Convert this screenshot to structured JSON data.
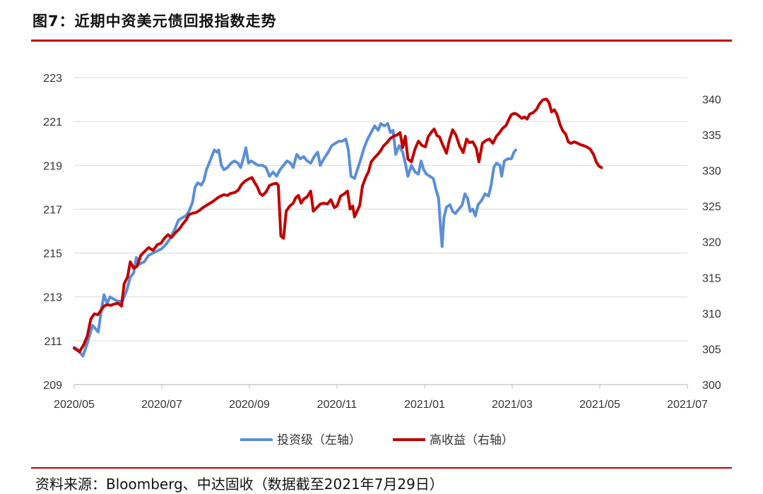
{
  "title": "图7：近期中资美元债回报指数走势",
  "source": "资料来源：Bloomberg、中达固收（数据截至2021年7月29日）",
  "chart_data": {
    "type": "line",
    "xlabels": [
      "2020/05",
      "2020/07",
      "2020/09",
      "2020/11",
      "2021/01",
      "2021/03",
      "2021/05",
      "2021/07"
    ],
    "left_axis": {
      "ticks": [
        209,
        211,
        213,
        215,
        217,
        219,
        221,
        223
      ],
      "range": [
        209,
        223
      ]
    },
    "right_axis": {
      "ticks": [
        300,
        305,
        310,
        315,
        320,
        325,
        330,
        335,
        340
      ],
      "range": [
        300,
        343
      ]
    },
    "grid": true,
    "legend": "bottom",
    "series": [
      {
        "name": "投资级（左轴）",
        "axis": "left",
        "color": "#5b8fd6",
        "points": [
          [
            0.0,
            210.7
          ],
          [
            0.08,
            210.6
          ],
          [
            0.2,
            210.3
          ],
          [
            0.3,
            210.9
          ],
          [
            0.42,
            211.7
          ],
          [
            0.55,
            211.4
          ],
          [
            0.62,
            212.4
          ],
          [
            0.68,
            213.1
          ],
          [
            0.75,
            212.7
          ],
          [
            0.82,
            213.0
          ],
          [
            0.9,
            212.9
          ],
          [
            1.0,
            212.8
          ],
          [
            1.1,
            212.8
          ],
          [
            1.2,
            213.3
          ],
          [
            1.28,
            213.9
          ],
          [
            1.36,
            214.1
          ],
          [
            1.42,
            214.8
          ],
          [
            1.5,
            214.5
          ],
          [
            1.6,
            214.6
          ],
          [
            1.7,
            214.9
          ],
          [
            1.8,
            215.0
          ],
          [
            1.9,
            215.1
          ],
          [
            2.0,
            215.2
          ],
          [
            2.1,
            215.4
          ],
          [
            2.2,
            215.7
          ],
          [
            2.3,
            216.1
          ],
          [
            2.38,
            216.5
          ],
          [
            2.46,
            216.6
          ],
          [
            2.55,
            216.7
          ],
          [
            2.62,
            216.9
          ],
          [
            2.7,
            217.3
          ],
          [
            2.76,
            218.0
          ],
          [
            2.82,
            218.2
          ],
          [
            2.9,
            218.1
          ],
          [
            2.96,
            218.3
          ],
          [
            3.02,
            218.8
          ],
          [
            3.08,
            219.1
          ],
          [
            3.14,
            219.4
          ],
          [
            3.2,
            219.7
          ],
          [
            3.26,
            219.6
          ],
          [
            3.3,
            219.7
          ],
          [
            3.36,
            219.0
          ],
          [
            3.42,
            218.8
          ],
          [
            3.5,
            218.9
          ],
          [
            3.58,
            219.1
          ],
          [
            3.66,
            219.2
          ],
          [
            3.74,
            219.1
          ],
          [
            3.8,
            218.9
          ],
          [
            3.86,
            219.3
          ],
          [
            3.92,
            219.8
          ],
          [
            3.98,
            219.1
          ],
          [
            4.04,
            219.2
          ],
          [
            4.12,
            219.1
          ],
          [
            4.2,
            219.0
          ],
          [
            4.3,
            219.0
          ],
          [
            4.38,
            218.9
          ],
          [
            4.46,
            218.5
          ],
          [
            4.54,
            218.7
          ],
          [
            4.62,
            218.5
          ],
          [
            4.7,
            218.8
          ],
          [
            4.78,
            219.0
          ],
          [
            4.86,
            219.2
          ],
          [
            4.94,
            219.1
          ],
          [
            5.0,
            218.9
          ],
          [
            5.08,
            219.5
          ],
          [
            5.16,
            219.3
          ],
          [
            5.24,
            219.4
          ],
          [
            5.32,
            219.2
          ],
          [
            5.4,
            219.1
          ],
          [
            5.48,
            219.4
          ],
          [
            5.56,
            219.6
          ],
          [
            5.62,
            219.0
          ],
          [
            5.7,
            219.3
          ],
          [
            5.8,
            219.6
          ],
          [
            5.88,
            219.9
          ],
          [
            5.96,
            220.0
          ],
          [
            6.04,
            220.1
          ],
          [
            6.12,
            220.1
          ],
          [
            6.2,
            220.2
          ],
          [
            6.26,
            219.7
          ],
          [
            6.32,
            218.5
          ],
          [
            6.4,
            218.4
          ],
          [
            6.48,
            218.9
          ],
          [
            6.56,
            219.4
          ],
          [
            6.62,
            219.8
          ],
          [
            6.7,
            220.2
          ],
          [
            6.78,
            220.5
          ],
          [
            6.86,
            220.8
          ],
          [
            6.94,
            220.6
          ],
          [
            7.0,
            220.9
          ],
          [
            7.08,
            220.8
          ],
          [
            7.16,
            220.9
          ],
          [
            7.22,
            220.5
          ],
          [
            7.28,
            220.6
          ],
          [
            7.34,
            219.5
          ],
          [
            7.42,
            219.9
          ],
          [
            7.5,
            219.6
          ],
          [
            7.56,
            219.1
          ],
          [
            7.62,
            218.5
          ],
          [
            7.7,
            219.0
          ],
          [
            7.78,
            218.7
          ],
          [
            7.86,
            218.6
          ],
          [
            7.92,
            219.2
          ],
          [
            7.98,
            218.8
          ],
          [
            8.04,
            218.6
          ],
          [
            8.12,
            218.5
          ],
          [
            8.2,
            218.4
          ],
          [
            8.26,
            217.9
          ],
          [
            8.32,
            217.5
          ],
          [
            8.36,
            216.3
          ],
          [
            8.4,
            215.3
          ],
          [
            8.44,
            216.6
          ],
          [
            8.5,
            217.1
          ],
          [
            8.58,
            217.2
          ],
          [
            8.64,
            216.9
          ],
          [
            8.7,
            216.8
          ],
          [
            8.78,
            217.0
          ],
          [
            8.86,
            217.2
          ],
          [
            8.92,
            217.7
          ],
          [
            8.98,
            217.5
          ],
          [
            9.04,
            216.9
          ],
          [
            9.1,
            217.0
          ],
          [
            9.16,
            216.7
          ],
          [
            9.22,
            217.2
          ],
          [
            9.3,
            217.4
          ],
          [
            9.38,
            217.7
          ],
          [
            9.46,
            217.6
          ],
          [
            9.52,
            218.1
          ],
          [
            9.58,
            218.9
          ],
          [
            9.64,
            219.1
          ],
          [
            9.72,
            219.0
          ],
          [
            9.76,
            218.5
          ],
          [
            9.82,
            219.2
          ],
          [
            9.9,
            219.3
          ],
          [
            9.98,
            219.3
          ],
          [
            10.04,
            219.6
          ],
          [
            10.08,
            219.7
          ]
        ]
      },
      {
        "name": "高收益（右轴）",
        "axis": "right",
        "color": "#c00000",
        "points": [
          [
            0.0,
            305.1
          ],
          [
            0.12,
            304.6
          ],
          [
            0.22,
            305.6
          ],
          [
            0.3,
            306.8
          ],
          [
            0.38,
            309.2
          ],
          [
            0.46,
            309.9
          ],
          [
            0.54,
            309.8
          ],
          [
            0.6,
            310.3
          ],
          [
            0.68,
            311.0
          ],
          [
            0.76,
            311.2
          ],
          [
            0.84,
            311.1
          ],
          [
            0.92,
            311.3
          ],
          [
            1.0,
            311.4
          ],
          [
            1.08,
            311.0
          ],
          [
            1.14,
            314.1
          ],
          [
            1.22,
            315.1
          ],
          [
            1.28,
            317.2
          ],
          [
            1.36,
            316.3
          ],
          [
            1.44,
            316.6
          ],
          [
            1.52,
            318.1
          ],
          [
            1.6,
            318.6
          ],
          [
            1.7,
            319.2
          ],
          [
            1.8,
            318.8
          ],
          [
            1.9,
            319.6
          ],
          [
            1.98,
            319.8
          ],
          [
            2.06,
            320.5
          ],
          [
            2.14,
            321.0
          ],
          [
            2.22,
            320.6
          ],
          [
            2.3,
            321.2
          ],
          [
            2.4,
            321.8
          ],
          [
            2.48,
            322.5
          ],
          [
            2.56,
            323.1
          ],
          [
            2.62,
            323.8
          ],
          [
            2.7,
            324.0
          ],
          [
            2.78,
            324.1
          ],
          [
            2.86,
            324.4
          ],
          [
            2.94,
            324.8
          ],
          [
            3.02,
            325.1
          ],
          [
            3.1,
            325.4
          ],
          [
            3.18,
            325.7
          ],
          [
            3.26,
            326.1
          ],
          [
            3.34,
            326.4
          ],
          [
            3.42,
            326.6
          ],
          [
            3.5,
            326.5
          ],
          [
            3.58,
            326.8
          ],
          [
            3.66,
            326.9
          ],
          [
            3.74,
            327.2
          ],
          [
            3.82,
            328.0
          ],
          [
            3.9,
            328.5
          ],
          [
            3.98,
            328.8
          ],
          [
            4.06,
            329.0
          ],
          [
            4.12,
            328.3
          ],
          [
            4.18,
            327.7
          ],
          [
            4.24,
            326.8
          ],
          [
            4.3,
            326.5
          ],
          [
            4.38,
            327.0
          ],
          [
            4.46,
            327.9
          ],
          [
            4.54,
            328.1
          ],
          [
            4.62,
            328.2
          ],
          [
            4.66,
            327.9
          ],
          [
            4.72,
            320.8
          ],
          [
            4.78,
            320.5
          ],
          [
            4.84,
            324.3
          ],
          [
            4.92,
            325.0
          ],
          [
            5.0,
            325.4
          ],
          [
            5.06,
            326.2
          ],
          [
            5.12,
            326.5
          ],
          [
            5.18,
            325.4
          ],
          [
            5.24,
            326.0
          ],
          [
            5.32,
            326.3
          ],
          [
            5.4,
            327.1
          ],
          [
            5.46,
            324.3
          ],
          [
            5.54,
            324.8
          ],
          [
            5.62,
            325.3
          ],
          [
            5.7,
            325.4
          ],
          [
            5.78,
            325.3
          ],
          [
            5.86,
            325.9
          ],
          [
            5.94,
            324.8
          ],
          [
            6.0,
            325.0
          ],
          [
            6.08,
            326.4
          ],
          [
            6.16,
            326.7
          ],
          [
            6.24,
            327.1
          ],
          [
            6.3,
            324.6
          ],
          [
            6.36,
            325.0
          ],
          [
            6.4,
            323.5
          ],
          [
            6.46,
            324.3
          ],
          [
            6.52,
            325.1
          ],
          [
            6.58,
            327.8
          ],
          [
            6.66,
            329.1
          ],
          [
            6.72,
            329.8
          ],
          [
            6.78,
            331.2
          ],
          [
            6.86,
            331.8
          ],
          [
            6.94,
            332.3
          ],
          [
            7.0,
            332.8
          ],
          [
            7.06,
            333.4
          ],
          [
            7.14,
            333.9
          ],
          [
            7.22,
            334.5
          ],
          [
            7.3,
            334.8
          ],
          [
            7.38,
            335.0
          ],
          [
            7.44,
            335.3
          ],
          [
            7.5,
            333.2
          ],
          [
            7.56,
            334.8
          ],
          [
            7.62,
            331.6
          ],
          [
            7.7,
            331.2
          ],
          [
            7.78,
            333.0
          ],
          [
            7.86,
            334.1
          ],
          [
            7.94,
            333.5
          ],
          [
            8.02,
            333.3
          ],
          [
            8.08,
            334.7
          ],
          [
            8.16,
            335.4
          ],
          [
            8.22,
            335.8
          ],
          [
            8.28,
            334.9
          ],
          [
            8.34,
            334.7
          ],
          [
            8.42,
            333.5
          ],
          [
            8.5,
            332.4
          ],
          [
            8.56,
            334.1
          ],
          [
            8.64,
            335.7
          ],
          [
            8.72,
            334.9
          ],
          [
            8.8,
            333.4
          ],
          [
            8.88,
            332.5
          ],
          [
            8.96,
            334.4
          ],
          [
            9.02,
            333.9
          ],
          [
            9.1,
            334.0
          ],
          [
            9.18,
            333.1
          ],
          [
            9.24,
            331.2
          ],
          [
            9.32,
            333.8
          ],
          [
            9.4,
            334.2
          ],
          [
            9.48,
            334.4
          ],
          [
            9.56,
            333.8
          ],
          [
            9.64,
            334.8
          ],
          [
            9.7,
            335.2
          ],
          [
            9.78,
            335.9
          ],
          [
            9.86,
            336.3
          ],
          [
            9.92,
            337.1
          ],
          [
            9.98,
            337.8
          ],
          [
            10.04,
            338.0
          ],
          [
            10.1,
            337.9
          ],
          [
            10.16,
            337.6
          ],
          [
            10.22,
            337.3
          ],
          [
            10.28,
            337.5
          ],
          [
            10.34,
            337.2
          ],
          [
            10.4,
            337.9
          ],
          [
            10.48,
            338.1
          ],
          [
            10.56,
            338.6
          ],
          [
            10.62,
            339.3
          ],
          [
            10.7,
            339.9
          ],
          [
            10.78,
            340.0
          ],
          [
            10.84,
            339.5
          ],
          [
            10.9,
            338.2
          ],
          [
            10.96,
            338.5
          ],
          [
            11.02,
            337.9
          ],
          [
            11.1,
            336.3
          ],
          [
            11.16,
            335.5
          ],
          [
            11.22,
            335.1
          ],
          [
            11.28,
            334.0
          ],
          [
            11.34,
            333.8
          ],
          [
            11.42,
            334.0
          ],
          [
            11.5,
            333.8
          ],
          [
            11.56,
            333.6
          ],
          [
            11.62,
            333.5
          ],
          [
            11.7,
            333.3
          ],
          [
            11.78,
            333.0
          ],
          [
            11.86,
            332.2
          ],
          [
            11.92,
            331.2
          ],
          [
            11.98,
            330.6
          ],
          [
            12.04,
            330.4
          ]
        ]
      }
    ]
  }
}
